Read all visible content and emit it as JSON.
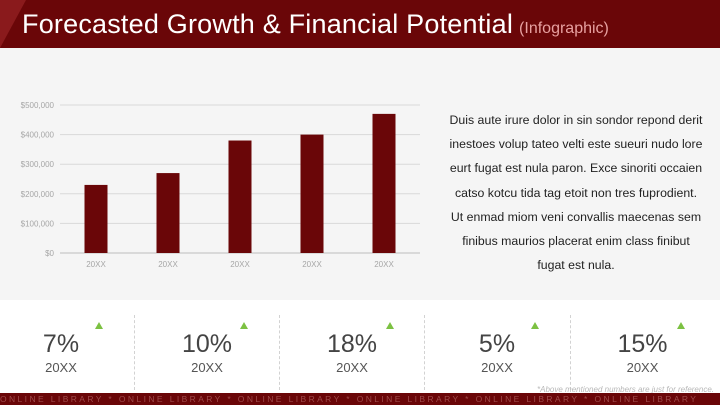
{
  "header": {
    "title": "Forecasted Growth & Financial Potential",
    "subtitle": "(Infographic)"
  },
  "description": "Duis aute irure dolor in sin sondor repond derit inestoes volup tateo velti este sueuri nudo lore eurt fugat est nula paron. Exce sinoriti occaien catso kotcu tida tag etoit non tres fuprodient. Ut enmad miom veni convallis maecenas sem finibus maurios placerat enim class finibut fugat est nula.",
  "chart_data": {
    "type": "bar",
    "categories": [
      "20XX",
      "20XX",
      "20XX",
      "20XX",
      "20XX"
    ],
    "values": [
      230000,
      270000,
      380000,
      400000,
      470000
    ],
    "ylim": [
      0,
      500000
    ],
    "yticks": [
      "$0",
      "$100,000",
      "$200,000",
      "$300,000",
      "$400,000",
      "$500,000"
    ],
    "grid": true,
    "bar_color": "#6a0608"
  },
  "stats": [
    {
      "percent": "7%",
      "year": "20XX",
      "trend": "up"
    },
    {
      "percent": "10%",
      "year": "20XX",
      "trend": "up"
    },
    {
      "percent": "18%",
      "year": "20XX",
      "trend": "up"
    },
    {
      "percent": "5%",
      "year": "20XX",
      "trend": "up"
    },
    {
      "percent": "15%",
      "year": "20XX",
      "trend": "up"
    }
  ],
  "footnote": "*Above mentioned numbers are just for reference.",
  "footer": {
    "text": "ONLINE LIBRARY * ONLINE LIBRARY * ONLINE LIBRARY * ONLINE LIBRARY * ONLINE LIBRARY * ONLINE LIBRARY"
  },
  "colors": {
    "brand": "#6a0608",
    "trend_up": "#7cc142"
  }
}
